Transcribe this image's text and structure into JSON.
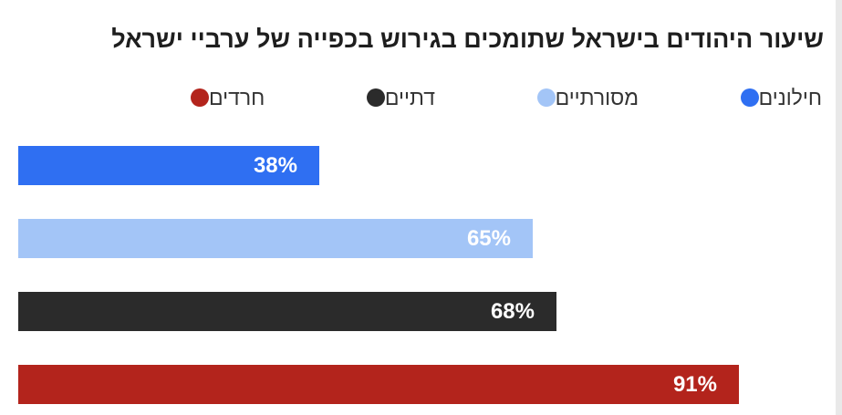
{
  "colors": {
    "secular": "#2f6ff2",
    "traditional": "#a3c5f7",
    "religious": "#2b2b2b",
    "haredi": "#b3241c"
  },
  "title": "שיעור היהודים בישראל שתומכים בגירוש בכפייה של ערביי ישראל",
  "chart_data": {
    "type": "bar",
    "orientation": "horizontal",
    "title": "שיעור היהודים בישראל שתומכים בגירוש בכפייה של ערביי ישראל",
    "xlabel": "",
    "ylabel": "",
    "xlim": [
      0,
      100
    ],
    "grid": false,
    "legend_placement": "top",
    "categories": [
      "חילונים",
      "מסורתיים",
      "דתיים",
      "חרדים"
    ],
    "values": [
      38,
      65,
      68,
      91
    ],
    "data_labels": [
      "38%",
      "65%",
      "68%",
      "91%"
    ],
    "series": [
      {
        "name": "חילונים",
        "value": 38,
        "color": "#2f6ff2"
      },
      {
        "name": "מסורתיים",
        "value": 65,
        "color": "#a3c5f7"
      },
      {
        "name": "דתיים",
        "value": 68,
        "color": "#2b2b2b"
      },
      {
        "name": "חרדים",
        "value": 91,
        "color": "#b3241c"
      }
    ]
  }
}
